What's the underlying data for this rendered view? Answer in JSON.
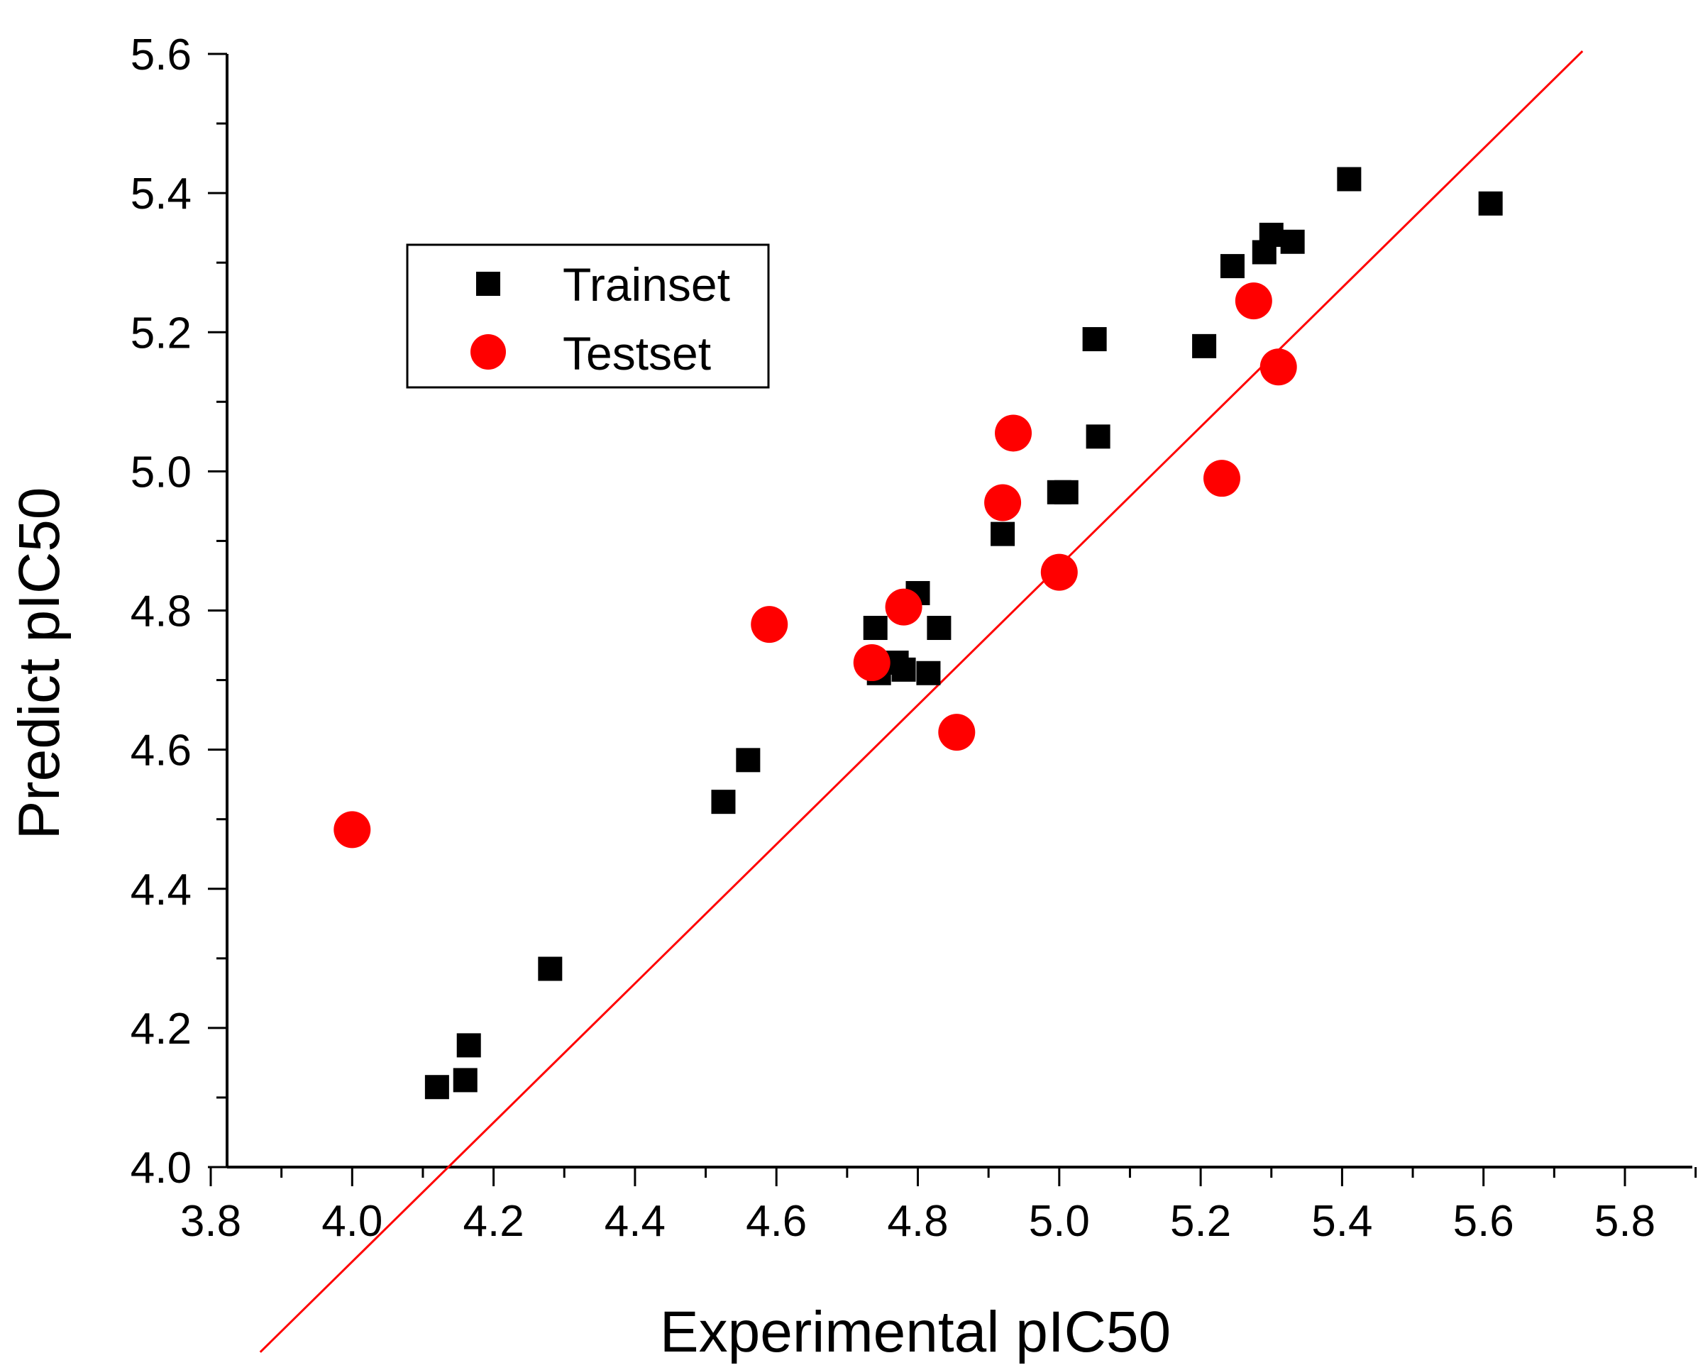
{
  "chart_data": {
    "type": "scatter",
    "title": "",
    "xlabel": "Experimental pIC50",
    "ylabel": "Predict pIC50",
    "xlim": [
      3.8,
      5.9
    ],
    "ylim": [
      4.0,
      5.6
    ],
    "xticks": [
      "3.8",
      "4.0",
      "4.2",
      "4.4",
      "4.6",
      "4.8",
      "5.0",
      "5.2",
      "5.4",
      "5.6",
      "5.8"
    ],
    "yticks": [
      "4.0",
      "4.2",
      "4.4",
      "4.6",
      "4.8",
      "5.0",
      "5.2",
      "5.4",
      "5.6"
    ],
    "legend": {
      "position": "upper-left",
      "entries": [
        "Trainset",
        "Testset"
      ]
    },
    "colors": {
      "train": "#000000",
      "test": "#ff0000",
      "fit_line": "#ff0000"
    },
    "series": [
      {
        "name": "Trainset",
        "marker": "square",
        "points": [
          [
            4.12,
            4.115
          ],
          [
            4.16,
            4.125
          ],
          [
            4.165,
            4.175
          ],
          [
            4.28,
            4.285
          ],
          [
            4.525,
            4.525
          ],
          [
            4.56,
            4.585
          ],
          [
            4.74,
            4.775
          ],
          [
            4.745,
            4.71
          ],
          [
            4.77,
            4.725
          ],
          [
            4.78,
            4.715
          ],
          [
            4.8,
            4.825
          ],
          [
            4.815,
            4.71
          ],
          [
            4.83,
            4.775
          ],
          [
            4.92,
            4.91
          ],
          [
            5.0,
            4.97
          ],
          [
            5.01,
            4.97
          ],
          [
            5.05,
            5.19
          ],
          [
            5.055,
            5.05
          ],
          [
            5.205,
            5.18
          ],
          [
            5.245,
            5.295
          ],
          [
            5.29,
            5.315
          ],
          [
            5.3,
            5.34
          ],
          [
            5.33,
            5.33
          ],
          [
            5.41,
            5.42
          ],
          [
            5.61,
            5.385
          ]
        ]
      },
      {
        "name": "Testset",
        "marker": "circle",
        "points": [
          [
            4.0,
            4.485
          ],
          [
            4.59,
            4.78
          ],
          [
            4.735,
            4.725
          ],
          [
            4.78,
            4.805
          ],
          [
            4.855,
            4.625
          ],
          [
            4.92,
            4.955
          ],
          [
            4.935,
            5.055
          ],
          [
            5.0,
            4.855
          ],
          [
            5.23,
            4.99
          ],
          [
            5.275,
            5.245
          ],
          [
            5.31,
            5.15
          ]
        ]
      }
    ],
    "fit_line": {
      "slope": 1.0,
      "intercept": -0.136,
      "x_range": [
        3.87,
        5.74
      ]
    }
  }
}
